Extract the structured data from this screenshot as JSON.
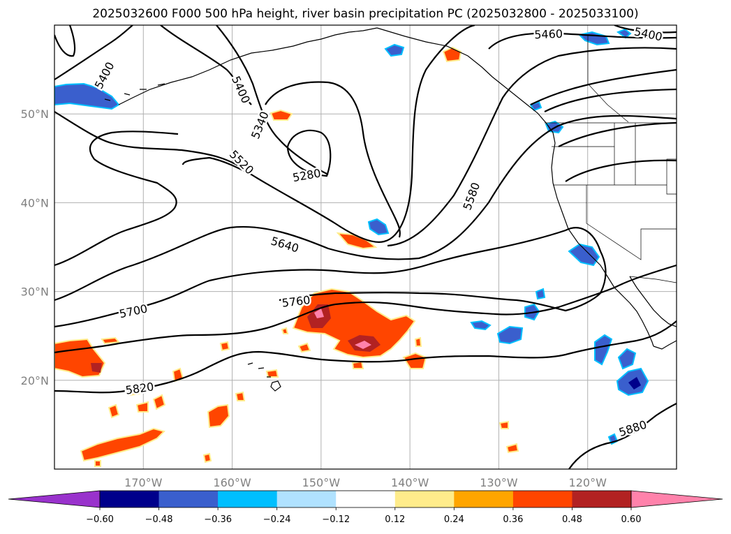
{
  "title": "2025032600 F000 500 hPa height, river basin precipitation PC (2025032800 - 2025033100)",
  "map": {
    "lon_range": [
      -180,
      -110
    ],
    "lat_range": [
      10,
      60
    ],
    "gridline_color": "#b0b0b0",
    "lon_ticks": [
      {
        "lon": -170,
        "label": "170°W"
      },
      {
        "lon": -160,
        "label": "160°W"
      },
      {
        "lon": -150,
        "label": "150°W"
      },
      {
        "lon": -140,
        "label": "140°W"
      },
      {
        "lon": -130,
        "label": "130°W"
      },
      {
        "lon": -120,
        "label": "120°W"
      }
    ],
    "lat_ticks": [
      {
        "lat": 20,
        "label": "20°N"
      },
      {
        "lat": 30,
        "label": "30°N"
      },
      {
        "lat": 40,
        "label": "40°N"
      },
      {
        "lat": 50,
        "label": "50°N"
      }
    ]
  },
  "contour_labels": [
    {
      "text": "5400",
      "lon": -174.3,
      "lat": 54.3,
      "rot": -62
    },
    {
      "text": "5400",
      "lon": -159.1,
      "lat": 52.7,
      "rot": 66
    },
    {
      "text": "5460",
      "lon": -124.4,
      "lat": 58.9,
      "rot": -2
    },
    {
      "text": "5400",
      "lon": -113.2,
      "lat": 58.9,
      "rot": 12
    },
    {
      "text": "5340",
      "lon": -156.8,
      "lat": 48.7,
      "rot": -68
    },
    {
      "text": "5520",
      "lon": -159.0,
      "lat": 44.5,
      "rot": 45
    },
    {
      "text": "5280",
      "lon": -151.6,
      "lat": 43.0,
      "rot": -10
    },
    {
      "text": "5580",
      "lon": -133.0,
      "lat": 40.7,
      "rot": -70
    },
    {
      "text": "5640",
      "lon": -154.1,
      "lat": 35.2,
      "rot": 17
    },
    {
      "text": "5760",
      "lon": -152.8,
      "lat": 28.8,
      "rot": -7
    },
    {
      "text": "5700",
      "lon": -171.1,
      "lat": 27.7,
      "rot": -12
    },
    {
      "text": "5820",
      "lon": -170.4,
      "lat": 19.0,
      "rot": -8
    },
    {
      "text": "5880",
      "lon": -114.9,
      "lat": 14.5,
      "rot": -18
    }
  ],
  "colorbar": {
    "colors": [
      "#9932cc",
      "#00008b",
      "#3a5fcd",
      "#00bfff",
      "#b0e2ff",
      "#ffffff",
      "#ffec8b",
      "#ffa500",
      "#ff4500",
      "#b22222",
      "#ff82ab"
    ],
    "tick_labels": [
      "−0.60",
      "−0.48",
      "−0.36",
      "−0.24",
      "−0.12",
      "0.12",
      "0.24",
      "0.36",
      "0.48",
      "0.60"
    ],
    "extend": "both"
  }
}
